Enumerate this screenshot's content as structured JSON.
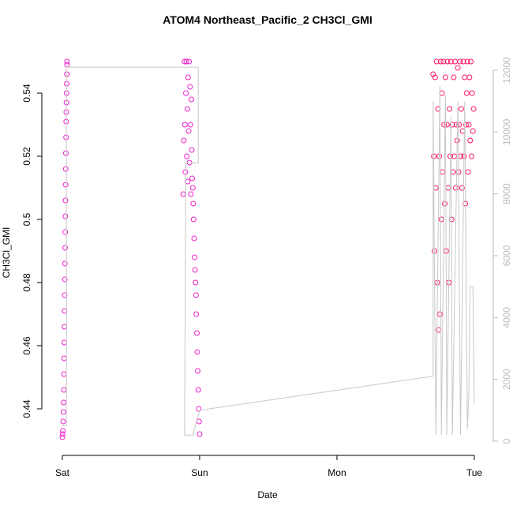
{
  "chart_data": {
    "type": "scatter",
    "title": "ATOM4 Northeast_Pacific_2 CH3Cl_GMI",
    "x_label": "Date",
    "y_label": "CH3Cl_GMI",
    "xlim": [
      -0.109,
      3.098
    ],
    "ylim": [
      0.427,
      0.552
    ],
    "y2lim": [
      -281,
      12485
    ],
    "xticks": [
      {
        "value": 0,
        "label": "Sat"
      },
      {
        "value": 1,
        "label": "Sun"
      },
      {
        "value": 2,
        "label": "Mon"
      },
      {
        "value": 3,
        "label": "Tue"
      }
    ],
    "yticks": [
      0.44,
      0.46,
      0.48,
      0.5,
      0.52,
      0.54
    ],
    "y2ticks": [
      0,
      2000,
      4000,
      6000,
      8000,
      10000,
      12000
    ],
    "series": [
      {
        "color": "#ee22cc",
        "x": [
          0.0,
          0.002,
          0.004,
          0.006,
          0.008,
          0.01,
          0.011,
          0.012,
          0.013,
          0.014,
          0.015,
          0.016,
          0.017,
          0.018,
          0.019,
          0.02,
          0.021,
          0.022,
          0.023,
          0.024,
          0.025,
          0.026,
          0.027,
          0.028,
          0.029,
          0.03,
          0.031,
          0.032,
          0.033,
          0.034,
          0.034,
          0.88,
          0.885,
          0.89,
          0.893,
          0.896,
          0.9,
          0.903,
          0.906,
          0.91,
          0.913,
          0.916,
          0.92,
          0.923,
          0.926,
          0.93,
          0.933,
          0.936,
          0.94,
          0.943,
          0.946,
          0.95,
          0.953,
          0.956,
          0.96,
          0.963,
          0.966,
          0.97,
          0.973,
          0.976,
          0.98,
          0.983,
          0.986,
          0.99,
          0.993,
          0.996,
          1.0
        ],
        "values": [
          0.431,
          0.432,
          0.433,
          0.436,
          0.439,
          0.442,
          0.446,
          0.451,
          0.456,
          0.461,
          0.466,
          0.471,
          0.476,
          0.481,
          0.486,
          0.491,
          0.496,
          0.501,
          0.506,
          0.511,
          0.516,
          0.521,
          0.526,
          0.531,
          0.534,
          0.537,
          0.54,
          0.543,
          0.546,
          0.549,
          0.55,
          0.508,
          0.525,
          0.55,
          0.53,
          0.515,
          0.54,
          0.55,
          0.52,
          0.535,
          0.512,
          0.545,
          0.528,
          0.55,
          0.518,
          0.542,
          0.53,
          0.508,
          0.538,
          0.522,
          0.513,
          0.51,
          0.505,
          0.5,
          0.494,
          0.488,
          0.484,
          0.48,
          0.476,
          0.47,
          0.464,
          0.458,
          0.452,
          0.446,
          0.44,
          0.436,
          0.432
        ]
      },
      {
        "color": "#ff1a66",
        "x": [
          2.7,
          2.705,
          2.71,
          2.715,
          2.72,
          2.725,
          2.73,
          2.735,
          2.74,
          2.745,
          2.75,
          2.755,
          2.76,
          2.765,
          2.77,
          2.775,
          2.78,
          2.785,
          2.79,
          2.795,
          2.8,
          2.805,
          2.81,
          2.815,
          2.82,
          2.825,
          2.83,
          2.835,
          2.84,
          2.845,
          2.85,
          2.855,
          2.86,
          2.865,
          2.87,
          2.875,
          2.88,
          2.885,
          2.89,
          2.895,
          2.9,
          2.905,
          2.91,
          2.915,
          2.92,
          2.925,
          2.93,
          2.935,
          2.94,
          2.945,
          2.95,
          2.955,
          2.96,
          2.965,
          2.97,
          2.975,
          2.98,
          2.985,
          2.99,
          2.995
        ],
        "values": [
          0.546,
          0.52,
          0.49,
          0.545,
          0.51,
          0.55,
          0.48,
          0.535,
          0.465,
          0.52,
          0.47,
          0.55,
          0.5,
          0.54,
          0.515,
          0.55,
          0.53,
          0.505,
          0.545,
          0.49,
          0.53,
          0.55,
          0.51,
          0.48,
          0.535,
          0.52,
          0.55,
          0.5,
          0.53,
          0.515,
          0.545,
          0.52,
          0.55,
          0.51,
          0.53,
          0.525,
          0.548,
          0.515,
          0.53,
          0.55,
          0.52,
          0.535,
          0.51,
          0.528,
          0.55,
          0.52,
          0.545,
          0.505,
          0.53,
          0.54,
          0.55,
          0.515,
          0.53,
          0.545,
          0.525,
          0.55,
          0.52,
          0.54,
          0.528,
          0.535
        ]
      },
      {
        "type": "line",
        "axis": "y2",
        "color": "#c8c8c8",
        "x": [
          0.0,
          0.03,
          0.03,
          0.99,
          0.99,
          0.9,
          0.89,
          0.95,
          1.0,
          2.7,
          2.7,
          2.72,
          2.75,
          2.76,
          2.79,
          2.8,
          2.83,
          2.84,
          2.88,
          2.9,
          2.93,
          2.95,
          2.96,
          2.97,
          2.99,
          3.0
        ],
        "values": [
          500,
          500,
          12100,
          12100,
          9000,
          9000,
          200,
          200,
          1000,
          2100,
          11000,
          200,
          11500,
          200,
          11200,
          200,
          10500,
          200,
          11000,
          200,
          11000,
          400,
          1500,
          5000,
          5000,
          1200
        ]
      }
    ]
  }
}
